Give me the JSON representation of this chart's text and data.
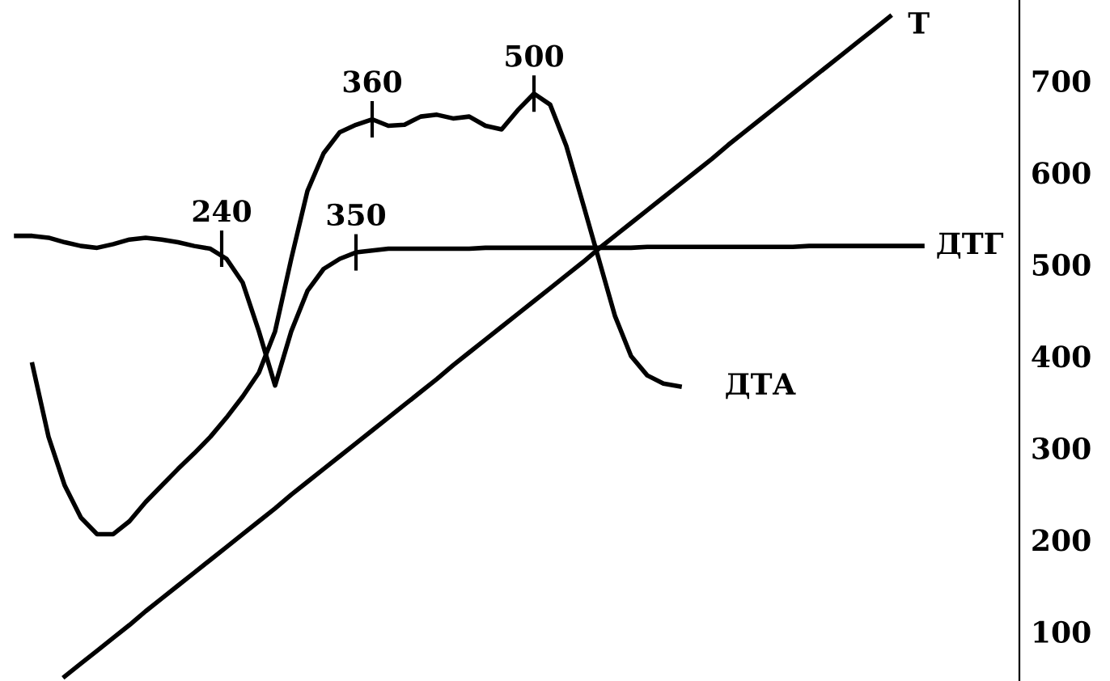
{
  "chart_data": {
    "type": "line",
    "categories": [
      null,
      null,
      null,
      null,
      null,
      null,
      null,
      null,
      null,
      null,
      null,
      null,
      null,
      null,
      null,
      null,
      null,
      null,
      null,
      null,
      null,
      null,
      null,
      null,
      null,
      null,
      null,
      null,
      null,
      null,
      null,
      null,
      null,
      null,
      null,
      null,
      null,
      null,
      null,
      null,
      null,
      null,
      null,
      null,
      null,
      null,
      null,
      null,
      null,
      null,
      null,
      null,
      null,
      null,
      null,
      null,
      null
    ],
    "series": [
      {
        "name": "ДТГ",
        "color": "#000000",
        "values": [
          531,
          531,
          529,
          524,
          520,
          518,
          522,
          527,
          529,
          527,
          524,
          520,
          517,
          506,
          480,
          427,
          368,
          427,
          471,
          495,
          506,
          513,
          515,
          517,
          517,
          517,
          517,
          517,
          517,
          518,
          518,
          518,
          518,
          518,
          518,
          518,
          518,
          518,
          518,
          519,
          519,
          519,
          519,
          519,
          519,
          519,
          519,
          519,
          519,
          520,
          520,
          520,
          520,
          520,
          520,
          520,
          520
        ]
      },
      {
        "name": "ДТА",
        "color": "#000000",
        "values": [
          null,
          391,
          312,
          259,
          224,
          206,
          206,
          220,
          241,
          259,
          277,
          294,
          312,
          333,
          356,
          382,
          427,
          506,
          580,
          621,
          644,
          652,
          658,
          651,
          652,
          661,
          663,
          659,
          661,
          651,
          647,
          668,
          686,
          674,
          629,
          568,
          506,
          444,
          400,
          379,
          370,
          367,
          null,
          null,
          null,
          null,
          null,
          null,
          null,
          null,
          null,
          null,
          null,
          null,
          null,
          null,
          null
        ]
      },
      {
        "name": "Т",
        "color": "#000000",
        "values": [
          null,
          null,
          null,
          51,
          65,
          79,
          93,
          107,
          122,
          136,
          150,
          164,
          178,
          192,
          206,
          220,
          234,
          249,
          263,
          277,
          291,
          305,
          319,
          333,
          347,
          361,
          375,
          390,
          404,
          418,
          432,
          446,
          460,
          474,
          488,
          502,
          517,
          531,
          545,
          559,
          573,
          587,
          601,
          615,
          630,
          644,
          658,
          672,
          686,
          700,
          714,
          728,
          742,
          756,
          770,
          null,
          null
        ]
      }
    ],
    "annotations": [
      {
        "text": "240",
        "y": 517
      },
      {
        "text": "350",
        "y": 513
      },
      {
        "text": "360",
        "y": 658
      },
      {
        "text": "500",
        "y": 686
      }
    ],
    "ylim": [
      46,
      788
    ],
    "yticks": [
      100,
      200,
      300,
      400,
      500,
      600,
      700
    ],
    "tick_labels": "y",
    "grid": false,
    "legend": false,
    "marker": "none",
    "line_style": "solid"
  }
}
